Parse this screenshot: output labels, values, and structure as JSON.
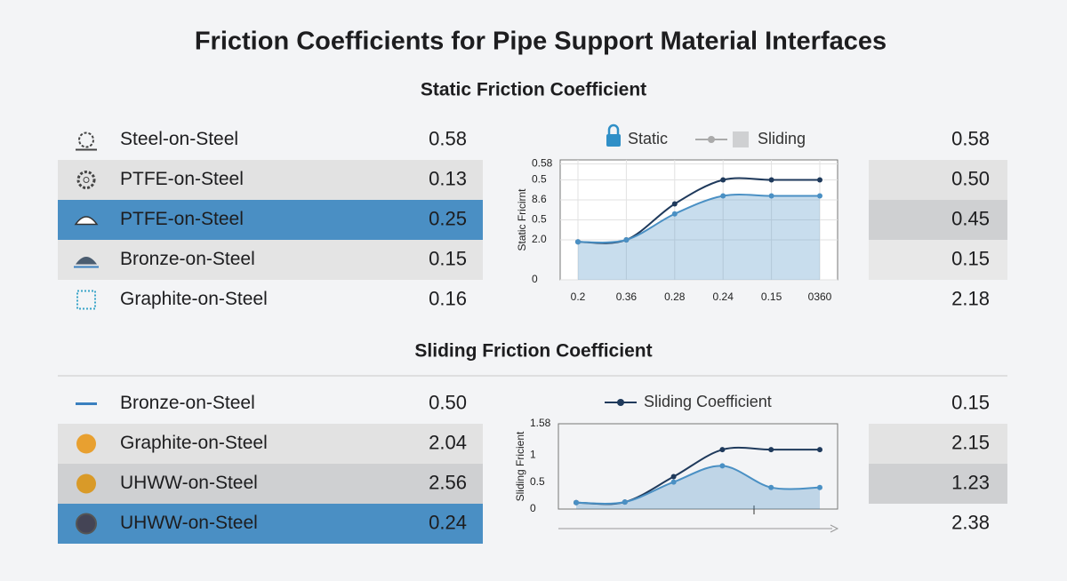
{
  "title": "Friction Coefficients for Pipe Support Material Interfaces",
  "sections": [
    {
      "heading": "Static Friction Coefficient",
      "rows": [
        {
          "label": "Steel-on-Steel",
          "value": "0.58"
        },
        {
          "label": "PTFE-on-Steel",
          "value": "0.13"
        },
        {
          "label": "PTFE-on-Steel",
          "value": "0.25"
        },
        {
          "label": "Bronze-on-Steel",
          "value": "0.15"
        },
        {
          "label": "Graphite-on-Steel",
          "value": "0.16"
        }
      ],
      "side_values": [
        "0.58",
        "0.50",
        "0.45",
        "0.15",
        "2.18"
      ],
      "chart": {
        "type": "line",
        "ylabel": "Static Fricirnt",
        "grid": true,
        "ylim": [
          0,
          0.6
        ],
        "yticks": [
          {
            "value": 0.58,
            "label": "0.58"
          },
          0.5,
          {
            "value": 0.4,
            "label": "8.6"
          },
          {
            "value": 0.3,
            "label": "0.5"
          },
          {
            "value": 0.2,
            "label": "2.0"
          },
          0
        ],
        "categories": [
          "0.2",
          "0.36",
          "0.28",
          "0.24",
          "0.15",
          "0360"
        ],
        "series": [
          {
            "name": "Static",
            "color": "#1f3a5c",
            "values": [
              0.19,
              0.2,
              0.38,
              0.5,
              0.5,
              0.5
            ]
          },
          {
            "name": "Sliding",
            "color": "#4a90c4",
            "values": [
              0.19,
              0.2,
              0.33,
              0.42,
              0.42,
              0.42
            ]
          }
        ]
      }
    },
    {
      "heading": "Sliding Friction Coefficient",
      "rows": [
        {
          "label": "Bronze-on-Steel",
          "value": "0.50"
        },
        {
          "label": "Graphite-on-Steel",
          "value": "2.04"
        },
        {
          "label": "UHWW-on-Steel",
          "value": "2.56"
        },
        {
          "label": "UHWW-on-Steel",
          "value": "0.24"
        }
      ],
      "side_values": [
        "0.15",
        "2.15",
        "1.23",
        "2.38"
      ],
      "chart": {
        "type": "line",
        "ylabel": "Sliding Fricient",
        "grid": false,
        "ylim": [
          0,
          1.58
        ],
        "yticks": [
          1.58,
          1,
          0.5,
          0
        ],
        "series": [
          {
            "name": "Sliding Coefficient",
            "color": "#1f3a5c",
            "values": [
              0.12,
              0.13,
              0.6,
              1.1,
              1.1,
              1.1
            ]
          },
          {
            "color": "#4a90c4",
            "values": [
              0.12,
              0.13,
              0.5,
              0.8,
              0.4,
              0.4
            ]
          }
        ]
      }
    }
  ]
}
